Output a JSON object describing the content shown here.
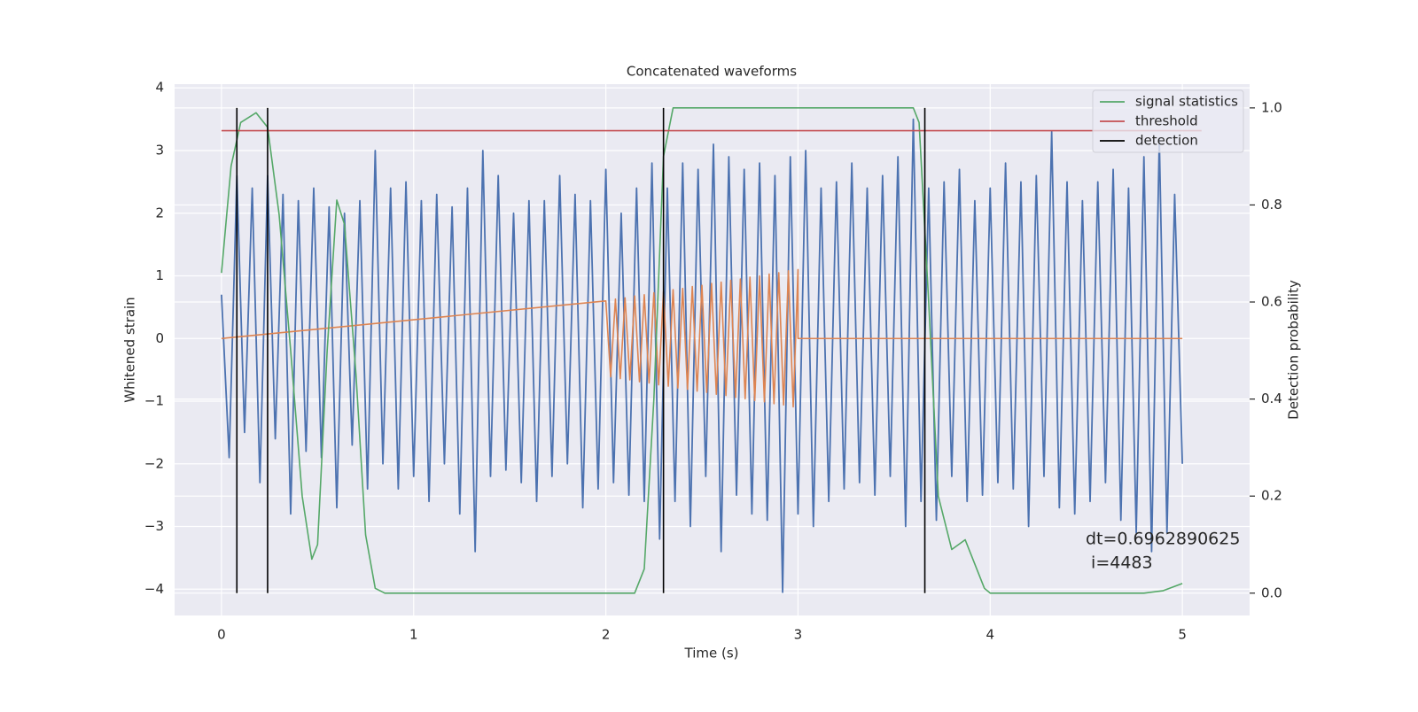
{
  "chart_data": {
    "type": "line",
    "title": "Concatenated waveforms",
    "xlabel": "Time (s)",
    "ylabel": "Whitened strain",
    "y2label": "Detection probability",
    "xlim": [
      -0.244,
      5.35
    ],
    "ylim": [
      -4.42,
      4.06
    ],
    "y2lim": [
      -0.046,
      1.049
    ],
    "xticks": [
      0,
      1,
      2,
      3,
      4,
      5
    ],
    "yticks": [
      {
        "value": -4,
        "label": "−4"
      },
      {
        "value": -3,
        "label": "−3"
      },
      {
        "value": -2,
        "label": "−2"
      },
      {
        "value": -1,
        "label": "−1"
      },
      0,
      1,
      2,
      3,
      4
    ],
    "y2ticks": [
      {
        "value": 0,
        "label": "0.0"
      },
      0.2,
      0.4,
      0.6,
      0.8,
      {
        "value": 1,
        "label": "1.0"
      }
    ],
    "grid": true,
    "legend": "upper right",
    "annotation": [
      "dt=0.6962890625",
      " i=4483"
    ],
    "series": [
      {
        "color": "#4c72b0",
        "axis": "y",
        "x": [
          0,
          0.04,
          0.08,
          0.12,
          0.16,
          0.2,
          0.24,
          0.28,
          0.32,
          0.36,
          0.4,
          0.44,
          0.48,
          0.52,
          0.56,
          0.6,
          0.64,
          0.68,
          0.72,
          0.76,
          0.8,
          0.84,
          0.88,
          0.92,
          0.96,
          1.0,
          1.04,
          1.08,
          1.12,
          1.16,
          1.2,
          1.24,
          1.28,
          1.32,
          1.36,
          1.4,
          1.44,
          1.48,
          1.52,
          1.56,
          1.6,
          1.64,
          1.68,
          1.72,
          1.76,
          1.8,
          1.84,
          1.88,
          1.92,
          1.96,
          2.0,
          2.04,
          2.08,
          2.12,
          2.16,
          2.2,
          2.24,
          2.28,
          2.32,
          2.36,
          2.4,
          2.44,
          2.48,
          2.52,
          2.56,
          2.6,
          2.64,
          2.68,
          2.72,
          2.76,
          2.8,
          2.84,
          2.88,
          2.92,
          2.96,
          3.0,
          3.04,
          3.08,
          3.12,
          3.16,
          3.2,
          3.24,
          3.28,
          3.32,
          3.36,
          3.4,
          3.44,
          3.48,
          3.52,
          3.56,
          3.6,
          3.64,
          3.68,
          3.72,
          3.76,
          3.8,
          3.84,
          3.88,
          3.92,
          3.96,
          4.0,
          4.04,
          4.08,
          4.12,
          4.16,
          4.2,
          4.24,
          4.28,
          4.32,
          4.36,
          4.4,
          4.44,
          4.48,
          4.52,
          4.56,
          4.6,
          4.64,
          4.68,
          4.72,
          4.76,
          4.8,
          4.84,
          4.88,
          4.92,
          4.96,
          5.0
        ],
        "values": [
          0.7,
          -1.9,
          2.6,
          -1.5,
          2.4,
          -2.3,
          2.6,
          -1.6,
          2.3,
          -2.8,
          2.2,
          -1.8,
          2.4,
          -1.9,
          2.1,
          -2.7,
          2.0,
          -1.7,
          2.2,
          -2.4,
          3.0,
          -2.0,
          2.4,
          -2.4,
          2.5,
          -2.2,
          2.2,
          -2.6,
          2.3,
          -2.0,
          2.1,
          -2.8,
          2.4,
          -3.4,
          3.0,
          -2.2,
          2.6,
          -2.1,
          2.0,
          -2.3,
          2.2,
          -2.6,
          2.2,
          -2.2,
          2.6,
          -2.0,
          2.3,
          -2.7,
          2.2,
          -2.4,
          2.7,
          -2.3,
          2.0,
          -2.5,
          2.4,
          -2.6,
          2.8,
          -3.2,
          2.4,
          -2.6,
          2.8,
          -3.0,
          2.7,
          -2.2,
          3.1,
          -3.4,
          2.9,
          -2.5,
          2.7,
          -2.8,
          2.8,
          -2.9,
          2.6,
          -4.05,
          2.9,
          -2.8,
          3.0,
          -3.0,
          2.4,
          -2.6,
          2.5,
          -2.4,
          2.8,
          -2.3,
          2.4,
          -2.5,
          2.6,
          -2.2,
          2.9,
          -3.0,
          3.5,
          -2.6,
          2.4,
          -2.9,
          2.5,
          -2.2,
          2.7,
          -2.6,
          2.2,
          -2.5,
          2.4,
          -2.3,
          2.8,
          -2.4,
          2.5,
          -3.0,
          2.6,
          -2.2,
          3.3,
          -2.7,
          2.5,
          -2.8,
          2.2,
          -2.6,
          2.5,
          -2.3,
          2.7,
          -2.9,
          2.4,
          -3.1,
          2.9,
          -3.4,
          3.2,
          -3.1,
          2.3,
          -2.0
        ]
      },
      {
        "color": "#dd8452",
        "axis": "y",
        "x": [
          0,
          2.0,
          2.025,
          2.05,
          2.075,
          2.1,
          2.125,
          2.15,
          2.175,
          2.2,
          2.225,
          2.25,
          2.275,
          2.3,
          2.325,
          2.35,
          2.375,
          2.4,
          2.425,
          2.45,
          2.475,
          2.5,
          2.525,
          2.55,
          2.575,
          2.6,
          2.625,
          2.65,
          2.675,
          2.7,
          2.725,
          2.75,
          2.775,
          2.8,
          2.825,
          2.85,
          2.875,
          2.9,
          2.925,
          2.95,
          2.975,
          3.0,
          3.0,
          5.0
        ],
        "values": [
          0,
          0.6,
          -0.61,
          0.63,
          -0.64,
          0.65,
          -0.66,
          0.68,
          -0.69,
          0.7,
          -0.71,
          0.73,
          -0.74,
          0.75,
          -0.76,
          0.78,
          -0.79,
          0.8,
          -0.81,
          0.83,
          -0.84,
          0.85,
          -0.86,
          0.88,
          -0.89,
          0.9,
          -0.91,
          0.93,
          -0.94,
          0.95,
          -0.96,
          0.98,
          -0.99,
          1.0,
          -1.01,
          1.03,
          -1.04,
          1.05,
          -1.06,
          1.08,
          -1.09,
          1.1,
          0,
          0
        ]
      },
      {
        "name": "signal statistics",
        "color": "#55a868",
        "axis": "y2",
        "x": [
          0,
          0.05,
          0.1,
          0.18,
          0.24,
          0.3,
          0.36,
          0.42,
          0.47,
          0.5,
          0.55,
          0.6,
          0.64,
          0.7,
          0.75,
          0.8,
          0.85,
          2.15,
          2.2,
          2.25,
          2.3,
          2.35,
          3.6,
          3.63,
          3.68,
          3.73,
          3.8,
          3.87,
          3.92,
          3.97,
          4.0,
          4.8,
          4.9,
          5.0
        ],
        "values": [
          0.66,
          0.88,
          0.97,
          0.99,
          0.96,
          0.78,
          0.5,
          0.2,
          0.07,
          0.1,
          0.5,
          0.81,
          0.76,
          0.45,
          0.12,
          0.01,
          0,
          0,
          0.05,
          0.4,
          0.9,
          1.0,
          1.0,
          0.97,
          0.6,
          0.2,
          0.09,
          0.11,
          0.06,
          0.01,
          0,
          0,
          0.005,
          0.02
        ]
      },
      {
        "name": "threshold",
        "color": "#c44e52",
        "axis": "y2",
        "x": [
          0,
          5.1
        ],
        "values": [
          0.953,
          0.953
        ]
      },
      {
        "name": "detection",
        "color": "#000000",
        "axis": "y2",
        "x": [
          0.08,
          0.08,
          0.08,
          0.24,
          0.24,
          0.24,
          2.3,
          2.3,
          2.3,
          3.66,
          3.66
        ],
        "values": [
          0,
          1,
          null,
          0,
          1,
          null,
          0,
          1,
          null,
          0,
          1
        ]
      }
    ]
  }
}
